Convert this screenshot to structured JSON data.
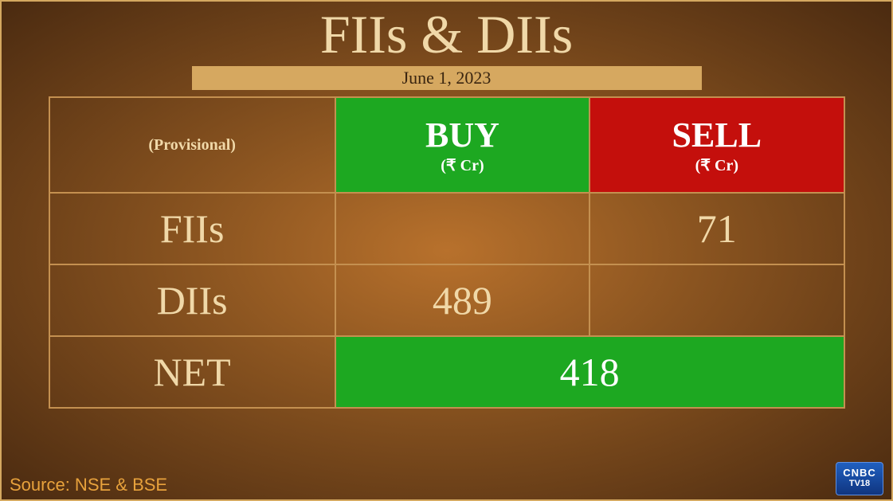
{
  "title": "FIIs & DIIs",
  "date": "June 1, 2023",
  "headers": {
    "provisional": "(Provisional)",
    "buy": "BUY",
    "buy_unit": "(₹ Cr)",
    "sell": "SELL",
    "sell_unit": "(₹ Cr)"
  },
  "rows": {
    "fii_label": "FIIs",
    "fii_buy": "",
    "fii_sell": "71",
    "dii_label": "DIIs",
    "dii_buy": "489",
    "dii_sell": "",
    "net_label": "NET",
    "net_val": "418"
  },
  "source": "Source: NSE & BSE",
  "logo": {
    "line1": "CNBC",
    "line2": "TV18"
  },
  "colors": {
    "buy_bg": "#1da821",
    "sell_bg": "#c40f0c",
    "text_light": "#f0d8a8",
    "border": "#c49050",
    "date_bg": "#d6a860",
    "source_color": "#e8a23c"
  }
}
